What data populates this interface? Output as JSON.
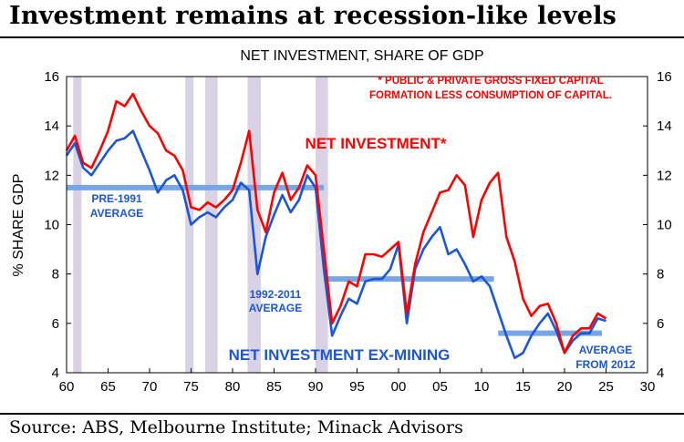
{
  "headline": "Investment remains at recession-like levels",
  "source": "Source: ABS, Melbourne Institute; Minack Advisors",
  "chart_data": {
    "type": "line",
    "title": "NET INVESTMENT, SHARE OF GDP",
    "ylabel": "% SHARE GDP",
    "xlim": [
      1960,
      2030
    ],
    "ylim": [
      4,
      16
    ],
    "x_ticks": [
      {
        "value": 1960,
        "label": "60"
      },
      {
        "value": 1965,
        "label": "65"
      },
      {
        "value": 1970,
        "label": "70"
      },
      {
        "value": 1975,
        "label": "75"
      },
      {
        "value": 1980,
        "label": "80"
      },
      {
        "value": 1985,
        "label": "85"
      },
      {
        "value": 1990,
        "label": "90"
      },
      {
        "value": 1995,
        "label": "95"
      },
      {
        "value": 2000,
        "label": "00"
      },
      {
        "value": 2005,
        "label": "05"
      },
      {
        "value": 2010,
        "label": "10"
      },
      {
        "value": 2015,
        "label": "15"
      },
      {
        "value": 2020,
        "label": "20"
      },
      {
        "value": 2025,
        "label": "25"
      },
      {
        "value": 2030,
        "label": "30"
      }
    ],
    "y_ticks": [
      4,
      6,
      8,
      10,
      12,
      14,
      16
    ],
    "grid": false,
    "recessions": [
      [
        1960.8,
        1961.8
      ],
      [
        1974.3,
        1975.3
      ],
      [
        1976.7,
        1978.2
      ],
      [
        1981.8,
        1983.4
      ],
      [
        1990.0,
        1991.5
      ]
    ],
    "series": [
      {
        "name": "NET INVESTMENT*",
        "color": "#ff0000",
        "x": [
          1960,
          1961,
          1962,
          1963,
          1964,
          1965,
          1966,
          1967,
          1968,
          1969,
          1970,
          1971,
          1972,
          1973,
          1974,
          1975,
          1976,
          1977,
          1978,
          1979,
          1980,
          1981,
          1982,
          1983,
          1984,
          1985,
          1986,
          1987,
          1988,
          1989,
          1990,
          1991,
          1992,
          1993,
          1994,
          1995,
          1996,
          1997,
          1998,
          1999,
          2000,
          2001,
          2002,
          2003,
          2004,
          2005,
          2006,
          2007,
          2008,
          2009,
          2010,
          2011,
          2012,
          2013,
          2014,
          2015,
          2016,
          2017,
          2018,
          2019,
          2020,
          2021,
          2022,
          2023,
          2024,
          2025
        ],
        "values": [
          13.0,
          13.6,
          12.5,
          12.3,
          13.0,
          13.8,
          15.0,
          14.8,
          15.3,
          14.6,
          14.0,
          13.7,
          13.0,
          12.8,
          12.2,
          10.7,
          10.6,
          10.9,
          10.7,
          11.0,
          11.4,
          12.5,
          13.8,
          10.6,
          9.7,
          11.3,
          12.1,
          11.0,
          11.5,
          12.4,
          12.0,
          9.0,
          6.0,
          6.7,
          7.7,
          7.5,
          8.8,
          8.8,
          8.7,
          9.0,
          9.3,
          6.4,
          8.4,
          9.7,
          10.5,
          11.3,
          11.4,
          12.0,
          11.6,
          9.5,
          11.0,
          11.7,
          12.1,
          9.5,
          8.5,
          7.0,
          6.3,
          6.7,
          6.8,
          6.0,
          4.8,
          5.5,
          5.8,
          5.8,
          6.4,
          6.2
        ]
      },
      {
        "name": "NET INVESTMENT EX-MINING",
        "color": "#1a56d6",
        "x": [
          1960,
          1961,
          1962,
          1963,
          1964,
          1965,
          1966,
          1967,
          1968,
          1969,
          1970,
          1971,
          1972,
          1973,
          1974,
          1975,
          1976,
          1977,
          1978,
          1979,
          1980,
          1981,
          1982,
          1983,
          1984,
          1985,
          1986,
          1987,
          1988,
          1989,
          1990,
          1991,
          1992,
          1993,
          1994,
          1995,
          1996,
          1997,
          1998,
          1999,
          2000,
          2001,
          2002,
          2003,
          2004,
          2005,
          2006,
          2007,
          2008,
          2009,
          2010,
          2011,
          2012,
          2013,
          2014,
          2015,
          2016,
          2017,
          2018,
          2019,
          2020,
          2021,
          2022,
          2023,
          2024,
          2025
        ],
        "values": [
          12.8,
          13.3,
          12.3,
          12.0,
          12.5,
          13.0,
          13.4,
          13.5,
          13.8,
          13.0,
          12.2,
          11.3,
          11.8,
          12.0,
          11.4,
          10.0,
          10.3,
          10.5,
          10.3,
          10.7,
          11.0,
          11.7,
          11.4,
          8.0,
          9.5,
          10.4,
          11.2,
          10.5,
          11.0,
          12.0,
          11.5,
          8.2,
          5.5,
          6.3,
          7.0,
          6.8,
          7.7,
          7.8,
          7.8,
          8.2,
          9.2,
          6.0,
          8.2,
          9.0,
          9.5,
          9.9,
          8.8,
          9.0,
          8.4,
          7.7,
          7.9,
          7.5,
          6.5,
          5.5,
          4.6,
          4.8,
          5.5,
          6.0,
          6.4,
          5.7,
          4.8,
          5.3,
          5.6,
          5.6,
          6.2,
          6.1
        ]
      }
    ],
    "averages": [
      {
        "label_lines": [
          "PRE-1991",
          "AVERAGE"
        ],
        "from": 1960,
        "to": 1991,
        "value": 11.5
      },
      {
        "label_lines": [
          "1992-2011",
          "AVERAGE"
        ],
        "from": 1991,
        "to": 2011.5,
        "value": 7.8
      },
      {
        "label_lines": [
          "AVERAGE",
          "FROM 2012"
        ],
        "from": 2012,
        "to": 2024.5,
        "value": 5.6
      }
    ],
    "annotations": {
      "footnote_lines": [
        "* PUBLIC & PRIVATE GROSS FIXED CAPITAL",
        "FORMATION LESS CONSUMPTION OF CAPITAL."
      ],
      "red_series_label": "NET INVESTMENT*",
      "blue_series_label": "NET INVESTMENT EX-MINING"
    },
    "colors": {
      "recession": "#d9d2e4",
      "average_bar": "#76a6e8",
      "red": "#ff0000",
      "blue": "#1a56d6"
    }
  }
}
